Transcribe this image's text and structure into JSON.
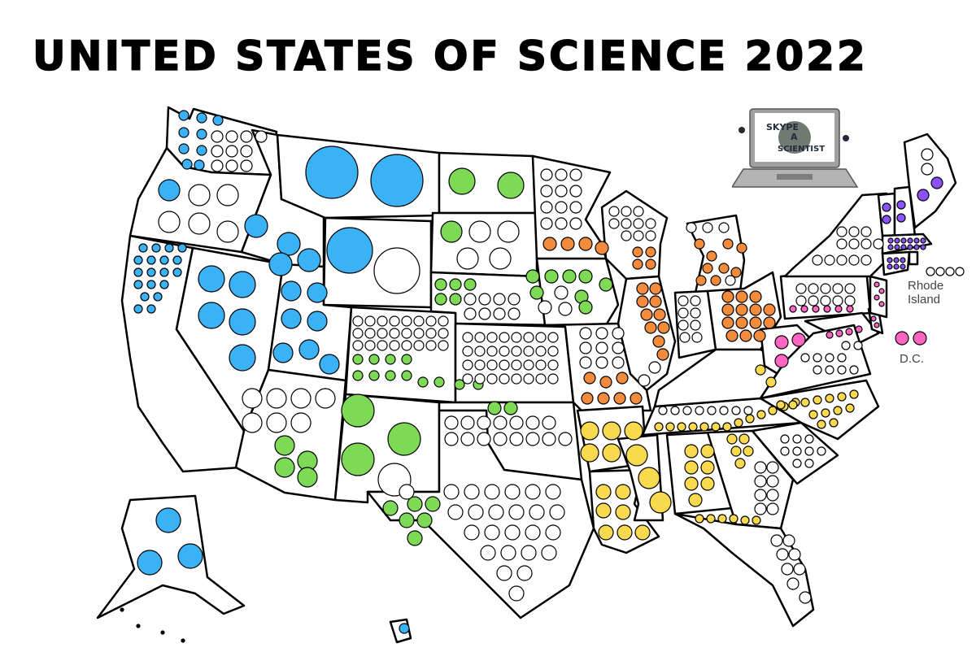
{
  "title": "UNITED STATES OF SCIENCE 2022",
  "labels": {
    "rhode_island": "Rhode Island",
    "dc": "D.C."
  },
  "logo": {
    "line1": "SKYPE",
    "line2": "A",
    "line3": "SCIENTIST"
  },
  "colors": {
    "blue": "#3bb2f5",
    "green": "#7ed957",
    "orange": "#f28b3c",
    "yellow": "#f9d94e",
    "pink": "#ff66c4",
    "purple": "#8c52ff",
    "empty": "#ffffff",
    "outline": "#000000"
  },
  "regions": [
    {
      "name": "Washington",
      "color": "blue"
    },
    {
      "name": "Oregon",
      "color": "blue"
    },
    {
      "name": "California",
      "color": "blue"
    },
    {
      "name": "Idaho",
      "color": "blue"
    },
    {
      "name": "Nevada",
      "color": "blue"
    },
    {
      "name": "Utah",
      "color": "blue"
    },
    {
      "name": "Montana",
      "color": "blue"
    },
    {
      "name": "Wyoming",
      "color": "blue"
    },
    {
      "name": "Alaska",
      "color": "blue"
    },
    {
      "name": "Hawaii",
      "color": "blue"
    },
    {
      "name": "North Dakota",
      "color": "green"
    },
    {
      "name": "South Dakota",
      "color": "green"
    },
    {
      "name": "Nebraska",
      "color": "green"
    },
    {
      "name": "Colorado",
      "color": "green"
    },
    {
      "name": "Iowa",
      "color": "green"
    },
    {
      "name": "Kansas",
      "color": "green"
    },
    {
      "name": "Arizona",
      "color": "green"
    },
    {
      "name": "New Mexico",
      "color": "green"
    },
    {
      "name": "Oklahoma",
      "color": "green"
    },
    {
      "name": "Texas",
      "color": "green"
    },
    {
      "name": "Minnesota",
      "color": "orange"
    },
    {
      "name": "Wisconsin",
      "color": "orange"
    },
    {
      "name": "Illinois",
      "color": "orange"
    },
    {
      "name": "Missouri",
      "color": "orange"
    },
    {
      "name": "Michigan",
      "color": "orange"
    },
    {
      "name": "Indiana",
      "color": "orange"
    },
    {
      "name": "Ohio",
      "color": "orange"
    },
    {
      "name": "Arkansas",
      "color": "yellow"
    },
    {
      "name": "Louisiana",
      "color": "yellow"
    },
    {
      "name": "Mississippi",
      "color": "yellow"
    },
    {
      "name": "Alabama",
      "color": "yellow"
    },
    {
      "name": "Tennessee",
      "color": "yellow"
    },
    {
      "name": "Kentucky",
      "color": "yellow"
    },
    {
      "name": "Georgia",
      "color": "yellow"
    },
    {
      "name": "Florida",
      "color": "yellow"
    },
    {
      "name": "North Carolina",
      "color": "yellow"
    },
    {
      "name": "South Carolina",
      "color": "yellow"
    },
    {
      "name": "Pennsylvania",
      "color": "pink"
    },
    {
      "name": "West Virginia",
      "color": "pink"
    },
    {
      "name": "Maryland",
      "color": "pink"
    },
    {
      "name": "Delaware",
      "color": "pink"
    },
    {
      "name": "New Jersey",
      "color": "pink"
    },
    {
      "name": "Virginia",
      "color": "pink"
    },
    {
      "name": "D.C.",
      "color": "pink"
    },
    {
      "name": "New York",
      "color": "purple"
    },
    {
      "name": "Vermont",
      "color": "purple"
    },
    {
      "name": "New Hampshire",
      "color": "purple"
    },
    {
      "name": "Maine",
      "color": "purple"
    },
    {
      "name": "Massachusetts",
      "color": "purple"
    },
    {
      "name": "Connecticut",
      "color": "purple"
    },
    {
      "name": "Rhode Island",
      "color": "purple"
    }
  ]
}
